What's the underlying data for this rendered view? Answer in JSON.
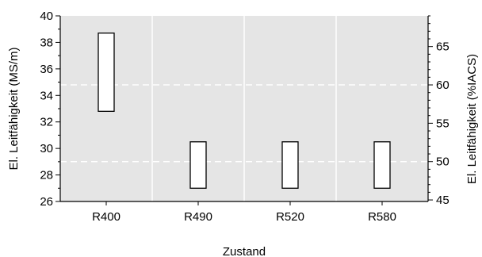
{
  "chart_data": {
    "type": "range-bar",
    "title": "",
    "xlabel": "Zustand",
    "ylabel": "El. Leitfähigkeit (MS/m)",
    "ylabel_right": "El. Leitfähigkeit (%IACS)",
    "categories": [
      "R400",
      "R490",
      "R520",
      "R580"
    ],
    "ranges": [
      {
        "category": "R400",
        "low": 32.8,
        "high": 38.7
      },
      {
        "category": "R490",
        "low": 27.0,
        "high": 30.5
      },
      {
        "category": "R520",
        "low": 27.0,
        "high": 30.5
      },
      {
        "category": "R580",
        "low": 27.0,
        "high": 30.5
      }
    ],
    "ylim": [
      26,
      40
    ],
    "yticks": [
      26,
      28,
      30,
      32,
      34,
      36,
      38,
      40
    ],
    "ylim_right": [
      44.8,
      69.0
    ],
    "yticks_right": [
      45,
      50,
      55,
      60,
      65
    ],
    "grid": true,
    "colors": {
      "plot_background": "#e5e5e5",
      "grid": "#ffffff",
      "bar_fill": "#ffffff",
      "bar_stroke": "#000000"
    }
  }
}
